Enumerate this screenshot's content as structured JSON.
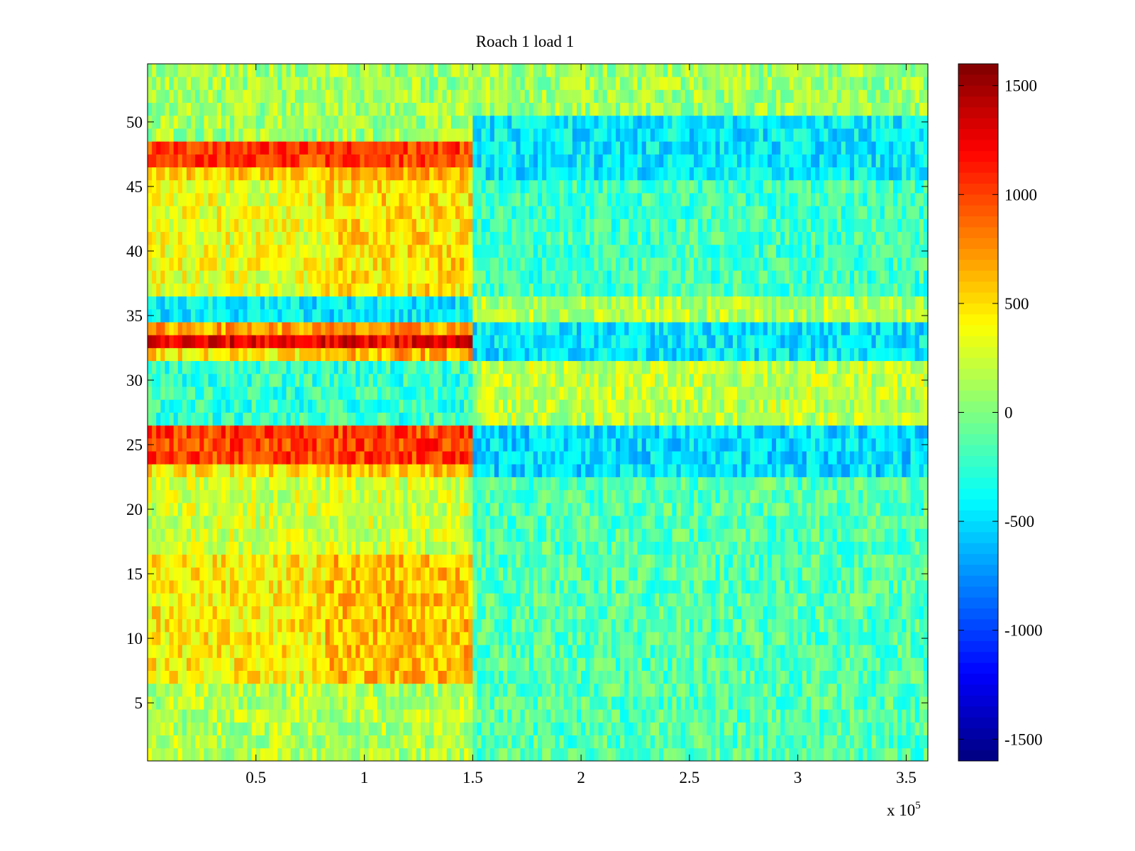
{
  "chart_data": {
    "type": "heatmap",
    "title": "Roach 1 load 1",
    "xlabel": "",
    "ylabel": "",
    "x_multiplier_label": "x 10",
    "x_multiplier_exponent": "5",
    "x_scale": 100000,
    "xlim": [
      0,
      360000
    ],
    "ylim": [
      0.5,
      54.5
    ],
    "rows": 54,
    "x_ticks": [
      50000,
      100000,
      150000,
      200000,
      250000,
      300000,
      350000
    ],
    "x_tick_labels": [
      "0.5",
      "1",
      "1.5",
      "2",
      "2.5",
      "3",
      "3.5"
    ],
    "y_ticks": [
      5,
      10,
      15,
      20,
      25,
      30,
      35,
      40,
      45,
      50
    ],
    "y_tick_labels": [
      "5",
      "10",
      "15",
      "20",
      "25",
      "30",
      "35",
      "40",
      "45",
      "50"
    ],
    "colorbar": {
      "colormap": "jet",
      "clim": [
        -1600,
        1600
      ],
      "ticks": [
        1500,
        1000,
        500,
        0,
        -500,
        -1000,
        -1500
      ],
      "tick_labels": [
        "1500",
        "1000",
        "500",
        "0",
        "-500",
        "-1000",
        "-1500"
      ]
    },
    "change_point_x": 150000,
    "approx_row_means_before_change": [
      {
        "rows": [
          1,
          6
        ],
        "value": 150
      },
      {
        "rows": [
          7,
          16
        ],
        "value": 450
      },
      {
        "rows": [
          17,
          22
        ],
        "value": 250
      },
      {
        "rows": [
          23,
          23
        ],
        "value": 450
      },
      {
        "rows": [
          24,
          26
        ],
        "value": 1000
      },
      {
        "rows": [
          27,
          31
        ],
        "value": -250
      },
      {
        "rows": [
          32,
          32
        ],
        "value": 500
      },
      {
        "rows": [
          33,
          33
        ],
        "value": 1250
      },
      {
        "rows": [
          34,
          34
        ],
        "value": 700
      },
      {
        "rows": [
          35,
          36
        ],
        "value": -450
      },
      {
        "rows": [
          37,
          45
        ],
        "value": 350
      },
      {
        "rows": [
          46,
          46
        ],
        "value": 550
      },
      {
        "rows": [
          47,
          48
        ],
        "value": 1000
      },
      {
        "rows": [
          49,
          54
        ],
        "value": 100
      }
    ],
    "approx_row_means_after_change": [
      {
        "rows": [
          1,
          22
        ],
        "value": -150
      },
      {
        "rows": [
          23,
          26
        ],
        "value": -500
      },
      {
        "rows": [
          27,
          31
        ],
        "value": 200
      },
      {
        "rows": [
          32,
          34
        ],
        "value": -450
      },
      {
        "rows": [
          35,
          36
        ],
        "value": 150
      },
      {
        "rows": [
          37,
          45
        ],
        "value": -200
      },
      {
        "rows": [
          46,
          50
        ],
        "value": -450
      },
      {
        "rows": [
          51,
          54
        ],
        "value": 100
      }
    ]
  }
}
